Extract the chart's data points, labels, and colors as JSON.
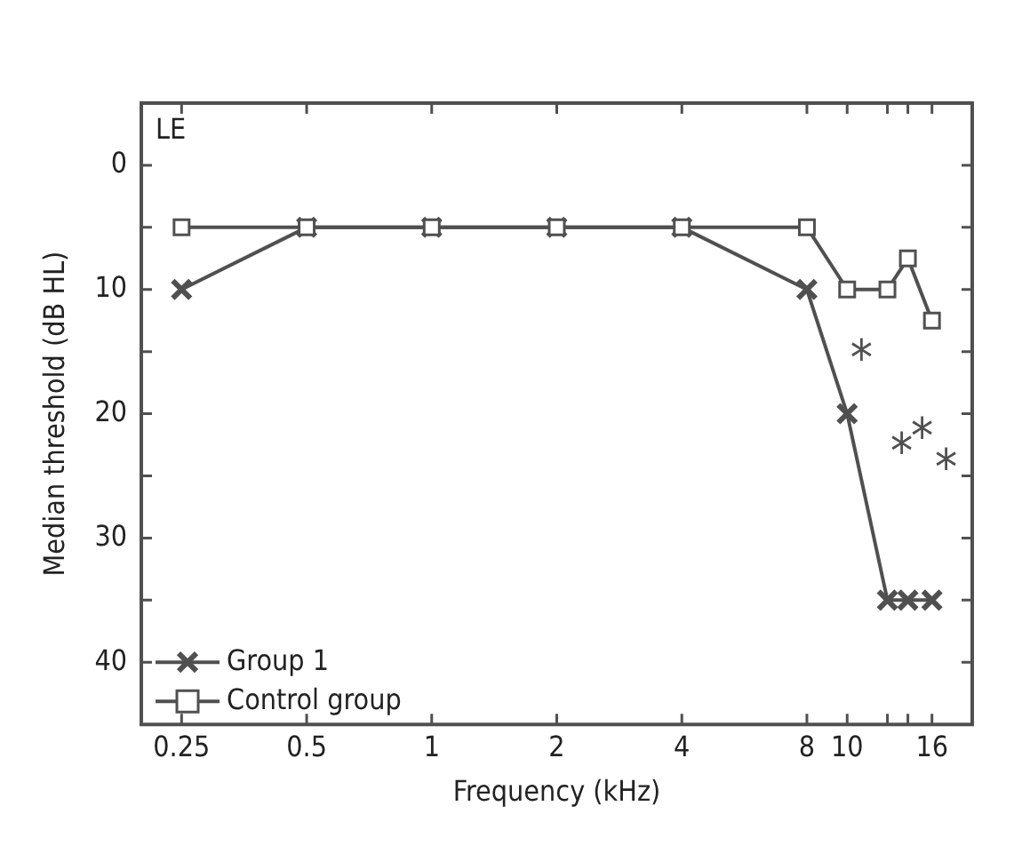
{
  "chart_data": {
    "type": "line",
    "xlabel": "Frequency (kHz)",
    "ylabel": "Median threshold (dB HL)",
    "log": "x",
    "xlim": [
      0.2,
      20
    ],
    "xticks": [
      0.25,
      0.5,
      1,
      2,
      4,
      8,
      10,
      {
        "value": 12.5,
        "label": null
      },
      {
        "value": 14,
        "label": null
      },
      16
    ],
    "ylim": [
      45,
      -5
    ],
    "yticks": [
      0,
      {
        "value": 5,
        "label": null
      },
      10,
      {
        "value": 15,
        "label": null
      },
      20,
      {
        "value": 25,
        "label": null
      },
      30,
      {
        "value": 35,
        "label": null
      },
      40
    ],
    "x": [
      0.25,
      0.5,
      1,
      2,
      4,
      8,
      10,
      12.5,
      14,
      16
    ],
    "series": [
      {
        "name": "Group 1",
        "color": "#505050",
        "marker": "cross",
        "values": [
          10,
          5,
          5,
          5,
          5,
          10,
          20,
          35,
          35,
          35
        ]
      },
      {
        "name": "Control group",
        "color": "#505050",
        "marker": "square",
        "values": [
          5,
          5,
          5,
          5,
          5,
          5,
          10,
          10,
          7.5,
          12.5
        ]
      }
    ],
    "annotations": [
      "LE",
      "*",
      "*",
      "*",
      "*"
    ],
    "legend": "bottom left",
    "grid": false,
    "line_style": "solid"
  }
}
